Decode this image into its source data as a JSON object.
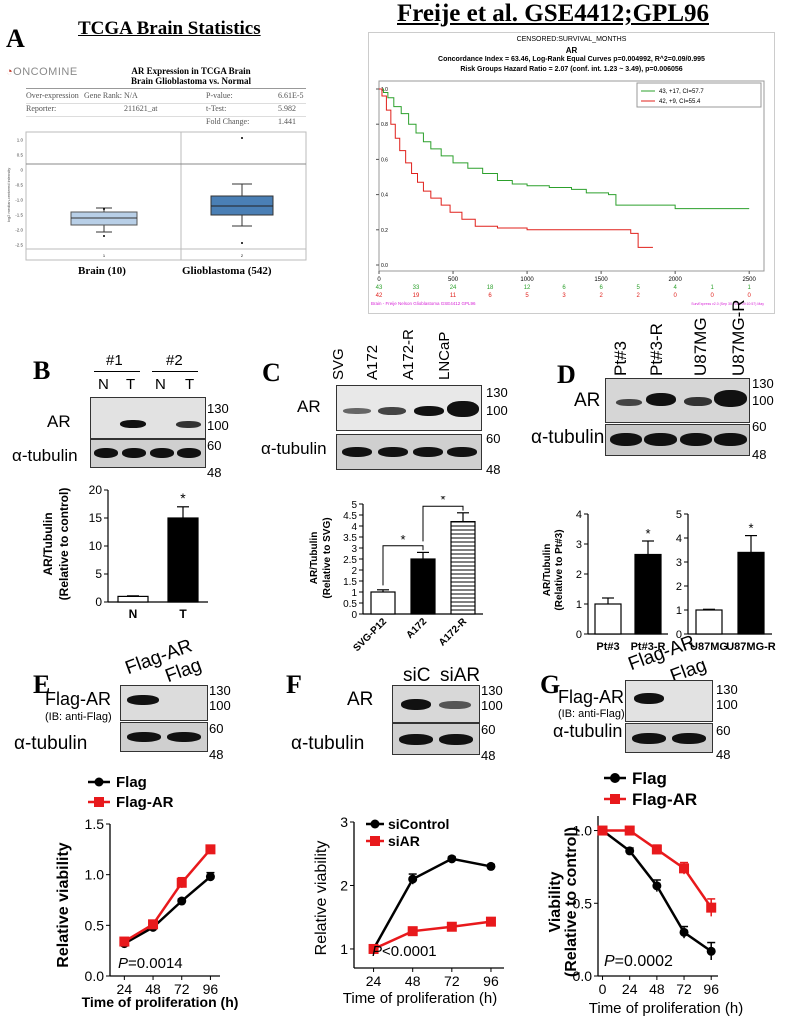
{
  "panelA": {
    "label": "A",
    "left_title": "TCGA Brain Statistics",
    "right_title": "Freije et al. GSE4412;GPL96",
    "oncomine": {
      "logo": "ONCOMINE",
      "title1": "AR Expression in TCGA Brain",
      "title2": "Brain Glioblastoma vs. Normal",
      "rows": [
        {
          "k1": "Over-expression",
          "k2": "Gene Rank:",
          "v2": "N/A",
          "k3": "P-value:",
          "v3": "6.61E-5"
        },
        {
          "k1": "Reporter:",
          "k2": "",
          "v2": "211621_at",
          "k3": "t-Test:",
          "v3": "5.982"
        },
        {
          "k1": "",
          "k2": "",
          "v2": "",
          "k3": "Fold Change:",
          "v3": "1.441"
        }
      ],
      "ylabel": "log2 median-centered intensity",
      "yticks": [
        "1.0",
        "0.5",
        "0",
        "-0.5",
        "-1.0",
        "-1.5",
        "-2.0",
        "-2.5"
      ],
      "groups": [
        "Brain (10)",
        "Glioblastoma (542)"
      ],
      "xnums": [
        "1",
        "2"
      ]
    },
    "km": {
      "head1": "CENSORED:SURVIVAL_MONTHS",
      "head2": "AR",
      "head3": "Concordance Index = 63.46, Log-Rank Equal Curves p=0.004992, R^2=0.09/0.995",
      "head4": "Risk Groups Hazard Ratio = 2.07 (conf. int. 1.23 ~ 3.49), p=0.006056",
      "legend": [
        {
          "label": "43, +17, CI=57.7",
          "color": "#2ca02c"
        },
        {
          "label": "42, +9, CI=55.4",
          "color": "#e0201b"
        }
      ],
      "yticks": [
        "1.0",
        "0.8",
        "0.6",
        "0.4",
        "0.2",
        "0.0"
      ],
      "xticks": [
        "0",
        "500",
        "1000",
        "1500",
        "2000",
        "2500"
      ],
      "risk_green": [
        "43",
        "33",
        "24",
        "18",
        "12",
        "6",
        "6",
        "5",
        "4",
        "1",
        "1"
      ],
      "risk_red": [
        "42",
        "19",
        "11",
        "6",
        "5",
        "3",
        "2",
        "2",
        "0",
        "0",
        "0"
      ],
      "footer": "Brain - Freije Nelson Glioblastoma GSE4412 GPL96",
      "footer_right": "SurvExpress v2.0 (Sep 30 2015 09:10:57) May"
    }
  },
  "panelB": {
    "label": "B",
    "groups": [
      "#1",
      "#2"
    ],
    "lanes": [
      "N",
      "T",
      "N",
      "T"
    ],
    "rows": [
      "AR",
      "α-tubulin"
    ],
    "mw": [
      "130",
      "100",
      "60",
      "48"
    ],
    "chart_data": {
      "type": "bar",
      "categories": [
        "N",
        "T"
      ],
      "values": [
        1.0,
        15.0
      ],
      "errors": [
        0.1,
        2.0
      ],
      "ylabel": "AR/Tubulin",
      "ylabel2": "(Relative to control)",
      "yticks": [
        "0",
        "5",
        "10",
        "15",
        "20"
      ],
      "ylim": [
        0,
        20
      ],
      "sig": "*"
    }
  },
  "panelC": {
    "label": "C",
    "lanes": [
      "SVG",
      "A172",
      "A172-R",
      "LNCaP"
    ],
    "rows": [
      "AR",
      "α-tubulin"
    ],
    "mw": [
      "130",
      "100",
      "60",
      "48"
    ],
    "chart_data": {
      "type": "bar",
      "categories": [
        "SVG-P12",
        "A172",
        "A172-R"
      ],
      "values": [
        1.0,
        2.5,
        4.2
      ],
      "errors": [
        0.1,
        0.3,
        0.4
      ],
      "ylabel": "AR/Tubulin",
      "ylabel2": "(Relative to SVG)",
      "yticks": [
        "0",
        "0.5",
        "1",
        "1.5",
        "2",
        "2.5",
        "3",
        "3.5",
        "4",
        "4.5",
        "5"
      ],
      "ylim": [
        0,
        5
      ],
      "sig": [
        "*",
        "*"
      ]
    }
  },
  "panelD": {
    "label": "D",
    "lanes": [
      "Pt#3",
      "Pt#3-R",
      "U87MG",
      "U87MG-R"
    ],
    "rows": [
      "AR",
      "α-tubulin"
    ],
    "mw": [
      "130",
      "100",
      "60",
      "48"
    ],
    "ylabel": "AR/Tubulin",
    "ylabel2": "(Relative to Pt#3)",
    "chart_data": [
      {
        "type": "bar",
        "categories": [
          "Pt#3",
          "Pt#3-R"
        ],
        "values": [
          1.0,
          2.65
        ],
        "errors": [
          0.2,
          0.45
        ],
        "yticks": [
          "0",
          "1",
          "2",
          "3",
          "4"
        ],
        "ylim": [
          0,
          4
        ],
        "sig": "*"
      },
      {
        "type": "bar",
        "categories": [
          "U87MG",
          "U87MG-R"
        ],
        "values": [
          1.0,
          3.4
        ],
        "errors": [
          0.03,
          0.7
        ],
        "yticks": [
          "0",
          "1",
          "2",
          "3",
          "4",
          "5"
        ],
        "ylim": [
          0,
          5
        ],
        "sig": "*"
      }
    ]
  },
  "panelE": {
    "label": "E",
    "lanes": [
      "Flag-AR",
      "Flag"
    ],
    "row1": "Flag-AR",
    "row1_sub": "(IB: anti-Flag)",
    "row2": "α-tubulin",
    "mw": [
      "130",
      "100",
      "60",
      "48"
    ],
    "chart_data": {
      "type": "line",
      "x": [
        24,
        48,
        72,
        96
      ],
      "series": [
        {
          "name": "Flag",
          "color": "#000000",
          "values": [
            0.32,
            0.48,
            0.74,
            0.98
          ],
          "errors": [
            0.01,
            0.02,
            0.02,
            0.04
          ]
        },
        {
          "name": "Flag-AR",
          "color": "#e8191c",
          "values": [
            0.34,
            0.51,
            0.92,
            1.25
          ],
          "errors": [
            0.01,
            0.02,
            0.05,
            0.04
          ]
        }
      ],
      "ylabel": "Relative viability",
      "xlabel": "Time of proliferation (h)",
      "yticks": [
        "0.0",
        "0.5",
        "1.0",
        "1.5"
      ],
      "ylim": [
        0,
        1.5
      ],
      "pvalue_prefix": "P",
      "pvalue": "=0.0014"
    }
  },
  "panelF": {
    "label": "F",
    "lanes": [
      "siC",
      "siAR"
    ],
    "row1": "AR",
    "row2": "α-tubulin",
    "mw": [
      "130",
      "100",
      "60",
      "48"
    ],
    "chart_data": {
      "type": "line",
      "x": [
        24,
        48,
        72,
        96
      ],
      "series": [
        {
          "name": "siControl",
          "color": "#000000",
          "values": [
            1.0,
            2.1,
            2.42,
            2.3
          ],
          "errors": [
            0.03,
            0.08,
            0.03,
            0.03
          ]
        },
        {
          "name": "siAR",
          "color": "#e8191c",
          "values": [
            1.0,
            1.28,
            1.35,
            1.43
          ],
          "errors": [
            0.02,
            0.03,
            0.03,
            0.03
          ]
        }
      ],
      "ylabel": "Relative viability",
      "xlabel": "Time of proliferation (h)",
      "yticks": [
        "1",
        "2",
        "3"
      ],
      "ylim": [
        0.7,
        3
      ],
      "pvalue_prefix": "P",
      "pvalue": "<0.0001"
    }
  },
  "panelG": {
    "label": "G",
    "lanes": [
      "Flag-AR",
      "Flag"
    ],
    "row1": "Flag-AR",
    "row1_sub": "(IB: anti-Flag)",
    "row2": "α-tubulin",
    "mw": [
      "130",
      "100",
      "60",
      "48"
    ],
    "chart_data": {
      "type": "line",
      "x": [
        0,
        24,
        48,
        72,
        96
      ],
      "xticklabels": [
        "0",
        "24",
        "48",
        "72",
        "96"
      ],
      "series": [
        {
          "name": "Flag",
          "color": "#000000",
          "values": [
            1.0,
            0.86,
            0.62,
            0.3,
            0.17
          ],
          "errors": [
            0.01,
            0.02,
            0.04,
            0.04,
            0.06
          ]
        },
        {
          "name": "Flag-AR",
          "color": "#e8191c",
          "values": [
            1.0,
            1.0,
            0.87,
            0.74,
            0.47
          ],
          "errors": [
            0.01,
            0.01,
            0.03,
            0.04,
            0.06
          ]
        }
      ],
      "ylabel": "Viability",
      "ylabel2": "(Relative to control)",
      "xlabel": "Time of proliferation (h)",
      "yticks": [
        "0.0",
        "0.5",
        "1.0"
      ],
      "ylim": [
        0,
        1.1
      ],
      "pvalue_prefix": "P",
      "pvalue": "=0.0002"
    }
  }
}
